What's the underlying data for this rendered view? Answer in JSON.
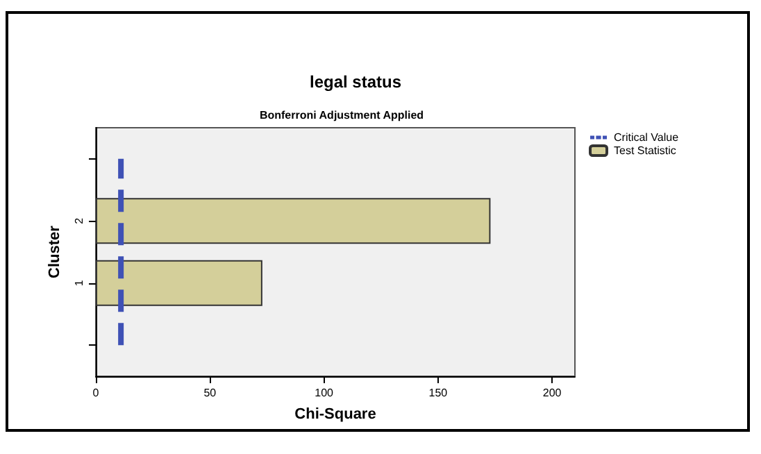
{
  "chart_data": {
    "type": "bar",
    "orientation": "horizontal",
    "title": "legal status",
    "subtitle": "Bonferroni Adjustment Applied",
    "xlabel": "Chi-Square",
    "ylabel": "Cluster",
    "categories": [
      null,
      "2",
      "1",
      null
    ],
    "series": [
      {
        "name": "Critical Value",
        "type": "line",
        "color": "#3f51b5",
        "line_style": "dashed",
        "marker": "none",
        "values": [
          11,
          11,
          11,
          11
        ]
      },
      {
        "name": "Test Statistic",
        "color": "#d4cf9a",
        "values": [
          null,
          173,
          73,
          null
        ]
      }
    ],
    "xlim": [
      0,
      210
    ],
    "xticks": [
      0,
      50,
      100,
      150,
      200
    ],
    "legend": "top right",
    "grid": false
  }
}
